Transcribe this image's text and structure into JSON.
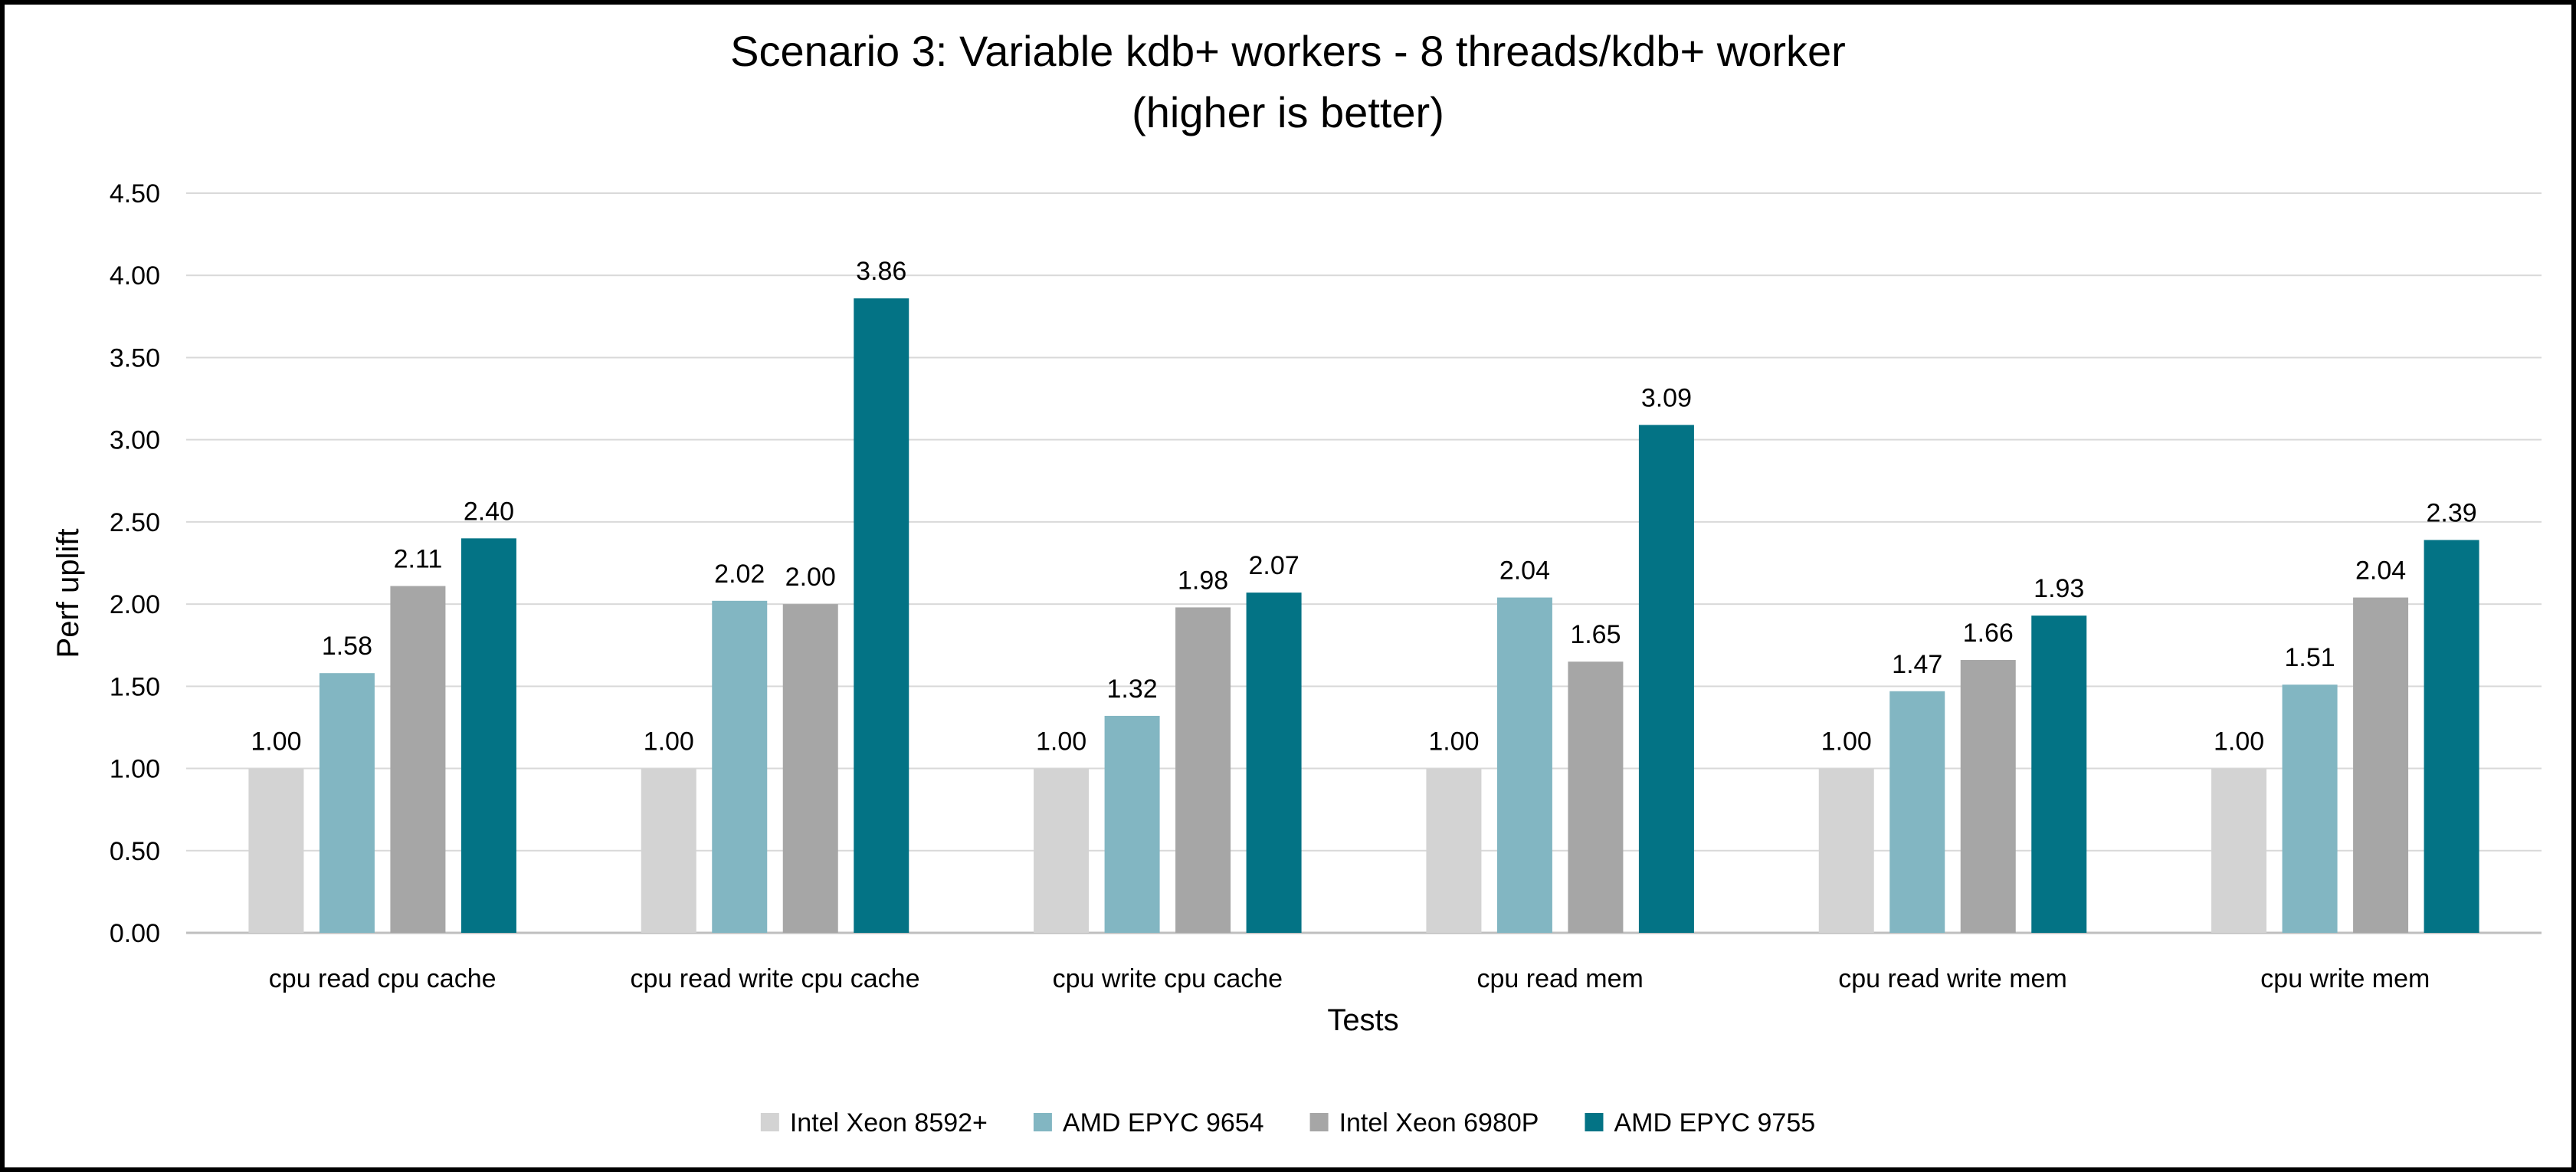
{
  "chart_data": {
    "type": "bar",
    "title": "Scenario 3: Variable kdb+ workers - 8 threads/kdb+ worker",
    "subtitle": "(higher is better)",
    "xlabel": "Tests",
    "ylabel": "Perf uplift",
    "ylim": [
      0,
      4.5
    ],
    "ytick_step": 0.5,
    "ytick_labels": [
      "0.00",
      "0.50",
      "1.00",
      "1.50",
      "2.00",
      "2.50",
      "3.00",
      "3.50",
      "4.00",
      "4.50"
    ],
    "grid": true,
    "legend_position": "bottom",
    "categories": [
      "cpu read cpu cache",
      "cpu read write cpu cache",
      "cpu write cpu cache",
      "cpu read mem",
      "cpu read write mem",
      "cpu write mem"
    ],
    "series": [
      {
        "name": "Intel Xeon 8592+",
        "color": "#d3d3d3",
        "values": [
          1.0,
          1.0,
          1.0,
          1.0,
          1.0,
          1.0
        ],
        "labels": [
          "1.00",
          "1.00",
          "1.00",
          "1.00",
          "1.00",
          "1.00"
        ]
      },
      {
        "name": "AMD EPYC 9654",
        "color": "#82b6c2",
        "values": [
          1.58,
          2.02,
          1.32,
          2.04,
          1.47,
          1.51
        ],
        "labels": [
          "1.58",
          "2.02",
          "1.32",
          "2.04",
          "1.47",
          "1.51"
        ]
      },
      {
        "name": "Intel Xeon 6980P",
        "color": "#a6a6a6",
        "values": [
          2.11,
          2.0,
          1.98,
          1.65,
          1.66,
          2.04
        ],
        "labels": [
          "2.11",
          "2.00",
          "1.98",
          "1.65",
          "1.66",
          "2.04"
        ]
      },
      {
        "name": "AMD EPYC 9755",
        "color": "#037385",
        "values": [
          2.4,
          3.86,
          2.07,
          3.09,
          1.93,
          2.39
        ],
        "labels": [
          "2.40",
          "3.86",
          "2.07",
          "3.09",
          "1.93",
          "2.39"
        ]
      }
    ]
  }
}
